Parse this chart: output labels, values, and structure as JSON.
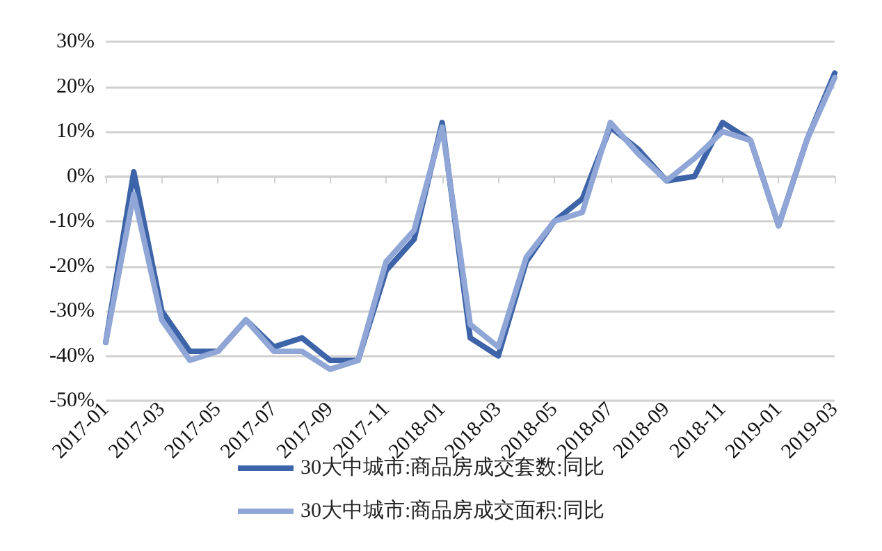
{
  "chart_data": {
    "type": "line",
    "categories": [
      "2017-01",
      null,
      "2017-03",
      null,
      "2017-05",
      null,
      "2017-07",
      null,
      "2017-09",
      null,
      "2017-11",
      null,
      "2018-01",
      null,
      "2018-03",
      null,
      "2018-05",
      null,
      "2018-07",
      null,
      "2018-09",
      null,
      "2018-11",
      null,
      "2019-01",
      null,
      "2019-03"
    ],
    "series": [
      {
        "name": "30大中城市:商品房成交套数:同比",
        "color": "#3d63a8",
        "values": [
          -37,
          1,
          -30,
          -39,
          -39,
          -32,
          -38,
          -36,
          -41,
          -41,
          -21,
          -14,
          12,
          -36,
          -40,
          -19,
          -10,
          -5,
          11,
          6,
          -1,
          0,
          12,
          8,
          -11,
          8,
          23
        ]
      },
      {
        "name": "30大中城市:商品房成交面积:同比",
        "color": "#8fa6d6",
        "values": [
          -37,
          -4,
          -32,
          -41,
          -39,
          -32,
          -39,
          -39,
          -43,
          -41,
          -19,
          -12,
          11,
          -33,
          -38,
          -18,
          -10,
          -8,
          12,
          5,
          -1,
          4,
          10,
          8,
          -11,
          8,
          22
        ]
      }
    ],
    "ylim": [
      -50,
      30
    ],
    "yticks": [
      {
        "value": -50,
        "label": "-50%"
      },
      {
        "value": -40,
        "label": "-40%"
      },
      {
        "value": -30,
        "label": "-30%"
      },
      {
        "value": -20,
        "label": "-20%"
      },
      {
        "value": -10,
        "label": "-10%"
      },
      {
        "value": 0,
        "label": "0%"
      },
      {
        "value": 10,
        "label": "10%"
      },
      {
        "value": 20,
        "label": "20%"
      },
      {
        "value": 30,
        "label": "30%"
      }
    ],
    "grid": "y",
    "legend": "bottom",
    "marker": "none",
    "line_style": "solid"
  }
}
